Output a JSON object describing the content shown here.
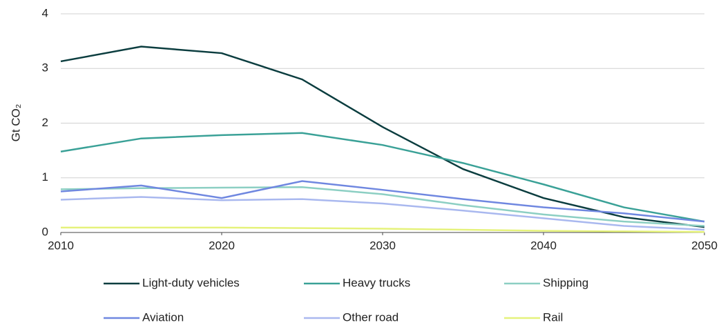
{
  "chart_data": {
    "type": "line",
    "y_label": "Gt CO₂",
    "x": [
      2010,
      2015,
      2020,
      2025,
      2030,
      2035,
      2040,
      2045,
      2050
    ],
    "xlim": [
      2010,
      2050
    ],
    "xticks": [
      2010,
      2020,
      2030,
      2040,
      2050
    ],
    "ylim": [
      0,
      4
    ],
    "yticks": [
      0,
      1,
      2,
      3,
      4
    ],
    "grid": true,
    "legend": "bottom",
    "series": [
      {
        "name": "Light-duty vehicles",
        "color": "#0b3d3f",
        "values": [
          3.13,
          3.4,
          3.28,
          2.8,
          1.93,
          1.16,
          0.63,
          0.28,
          0.1
        ]
      },
      {
        "name": "Heavy trucks",
        "color": "#3aa197",
        "values": [
          1.48,
          1.72,
          1.78,
          1.82,
          1.6,
          1.27,
          0.88,
          0.46,
          0.2
        ]
      },
      {
        "name": "Shipping",
        "color": "#8ccfc3",
        "values": [
          0.79,
          0.81,
          0.82,
          0.83,
          0.7,
          0.5,
          0.33,
          0.2,
          0.12
        ]
      },
      {
        "name": "Aviation",
        "color": "#6f87e0",
        "values": [
          0.75,
          0.86,
          0.63,
          0.94,
          0.78,
          0.61,
          0.46,
          0.35,
          0.2
        ]
      },
      {
        "name": "Other road",
        "color": "#a9b8ef",
        "values": [
          0.6,
          0.65,
          0.59,
          0.61,
          0.53,
          0.4,
          0.26,
          0.12,
          0.05
        ]
      },
      {
        "name": "Rail",
        "color": "#e5f27a",
        "values": [
          0.09,
          0.09,
          0.09,
          0.08,
          0.07,
          0.05,
          0.03,
          0.02,
          0.01
        ]
      }
    ]
  }
}
